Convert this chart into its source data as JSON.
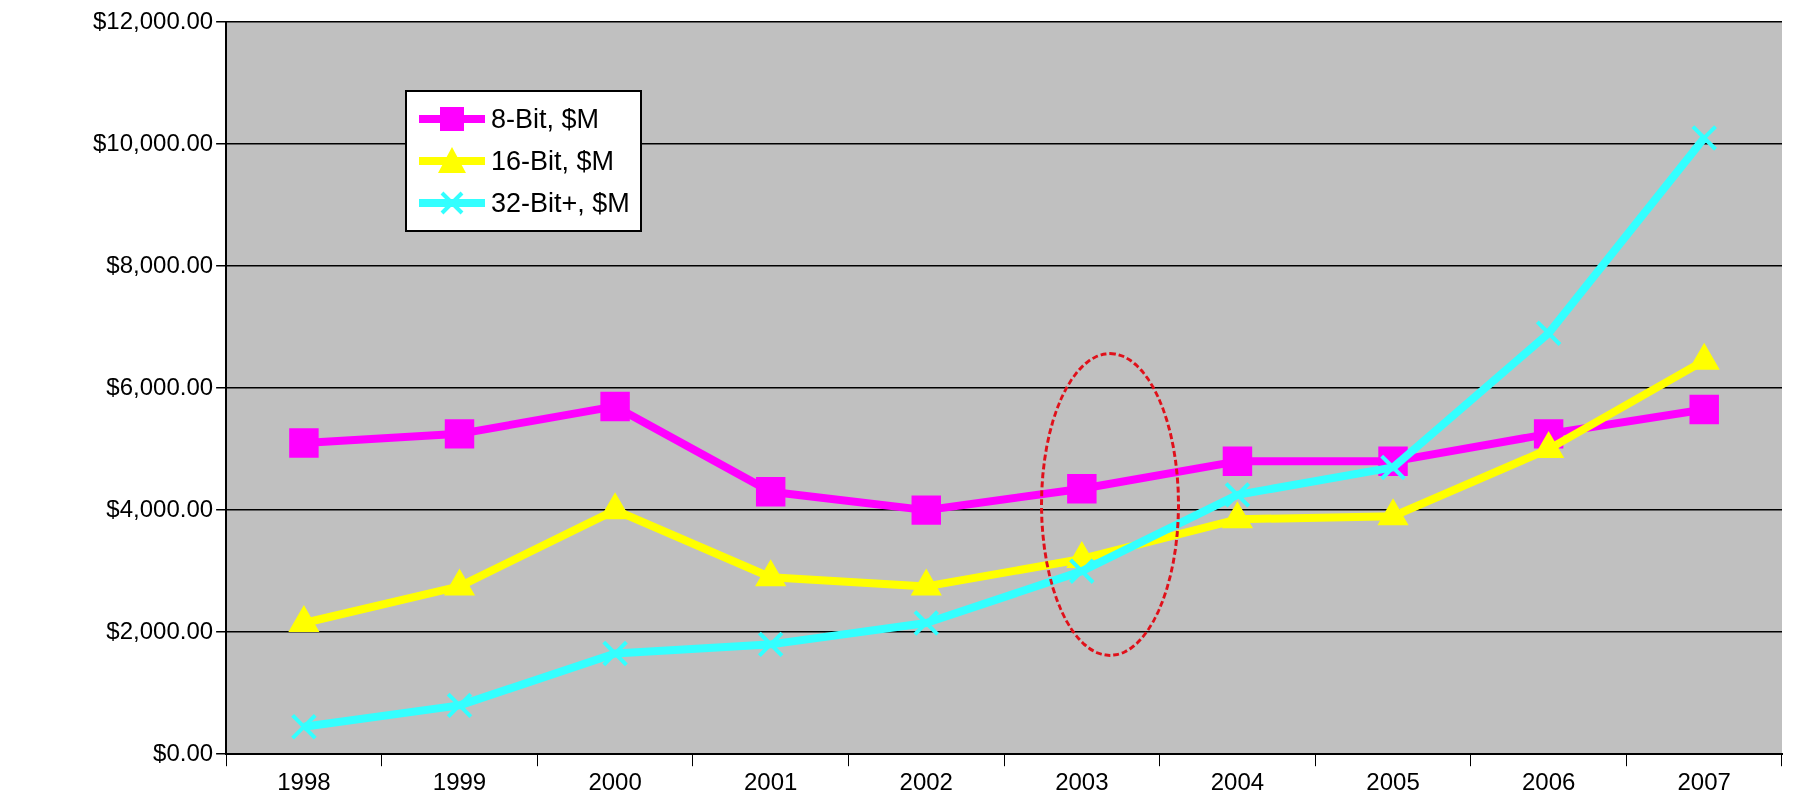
{
  "chart_data": {
    "type": "line",
    "categories": [
      "1998",
      "1999",
      "2000",
      "2001",
      "2002",
      "2003",
      "2004",
      "2005",
      "2006",
      "2007"
    ],
    "series": [
      {
        "name": "8-Bit, $M",
        "color": "#ff00ff",
        "marker": "square",
        "values": [
          5100,
          5250,
          5700,
          4300,
          4000,
          4350,
          4800,
          4800,
          5250,
          5650
        ]
      },
      {
        "name": "16-Bit, $M",
        "color": "#ffff00",
        "marker": "triangle",
        "values": [
          2150,
          2750,
          4000,
          2900,
          2750,
          3200,
          3850,
          3900,
          5000,
          6450
        ]
      },
      {
        "name": "32-Bit+, $M",
        "color": "#33ffff",
        "marker": "cross",
        "values": [
          450,
          800,
          1650,
          1800,
          2150,
          3000,
          4250,
          4700,
          6900,
          10100
        ]
      }
    ],
    "ylim": [
      0,
      12000
    ],
    "yticks": [
      {
        "value": 0,
        "label": "$0.00"
      },
      {
        "value": 2000,
        "label": "$2,000.00"
      },
      {
        "value": 4000,
        "label": "$4,000.00"
      },
      {
        "value": 6000,
        "label": "$6,000.00"
      },
      {
        "value": 8000,
        "label": "$8,000.00"
      },
      {
        "value": 10000,
        "label": "$10,000.00"
      },
      {
        "value": 12000,
        "label": "$12,000.00"
      }
    ],
    "grid": "y",
    "legend": "top left",
    "line_style": "solid"
  }
}
